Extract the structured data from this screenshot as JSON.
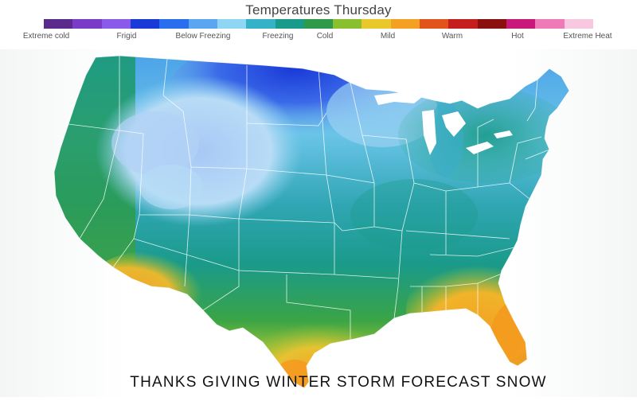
{
  "map": {
    "title": "Temperatures Thursday",
    "legend": {
      "labels": [
        "Extreme cold",
        "Frigid",
        "Below Freezing",
        "Freezing",
        "Cold",
        "Mild",
        "Warm",
        "Hot",
        "Extreme Heat"
      ],
      "colors": [
        "#5a2b8c",
        "#7a3cc8",
        "#8a5be8",
        "#1a3ad8",
        "#2a6ef0",
        "#5aa6f0",
        "#8fd6f4",
        "#34b3c8",
        "#1a9a8a",
        "#2f9a4a",
        "#8ac030",
        "#e8c82a",
        "#f4a022",
        "#e2541c",
        "#c41e1e",
        "#8a1010",
        "#c8187a",
        "#f07ab8",
        "#f8c8e0"
      ]
    },
    "zone_colors": {
      "freezing": "#a8dcf6",
      "below_freezing": "#2a5ae6",
      "cold": "#1a9a8a",
      "mild": "#3aa446",
      "warm": "#f4a022"
    }
  },
  "caption": "THANKS GIVING WINTER STORM FORECAST SNOW"
}
